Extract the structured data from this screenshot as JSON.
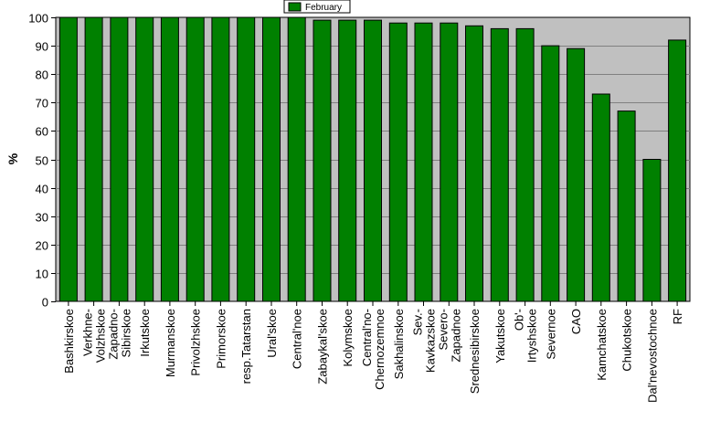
{
  "chart_data": {
    "type": "bar",
    "xlabel": "",
    "ylabel": "%",
    "ylim": [
      0,
      100
    ],
    "yticks": [
      0,
      10,
      20,
      30,
      40,
      50,
      60,
      70,
      80,
      90,
      100
    ],
    "grid": true,
    "legend_position": "top-center",
    "categories": [
      [
        "Bashkirskoe"
      ],
      [
        "Verkhne-",
        "Volzhskoe"
      ],
      [
        "Zapadno-",
        "Sibirskoe"
      ],
      [
        "Irkutskoe"
      ],
      [
        "Murmanskoe"
      ],
      [
        "Privolzhskoe"
      ],
      [
        "Primorskoe"
      ],
      [
        "resp.Tatarstan"
      ],
      [
        "Ural'skoe"
      ],
      [
        "Central'noe"
      ],
      [
        "Zabaykal'skoe"
      ],
      [
        "Kolymskoe"
      ],
      [
        "Central'no-",
        "Chernozemnoe"
      ],
      [
        "Sakhalinskoe"
      ],
      [
        "Sev.-",
        "Kavkazskoe"
      ],
      [
        "Severo-",
        "Zapadnoe"
      ],
      [
        "Srednesibirskoe"
      ],
      [
        "Yakutskoe"
      ],
      [
        "Ob'-",
        "Irtyshskoe"
      ],
      [
        "Severnoe"
      ],
      [
        "CAO"
      ],
      [
        "Kamchatskoe"
      ],
      [
        "Chukotskoe"
      ],
      [
        "Dal'nevostochnoe"
      ],
      [
        "RF"
      ]
    ],
    "series": [
      {
        "name": "February",
        "values": [
          100,
          100,
          100,
          100,
          100,
          100,
          100,
          100,
          100,
          100,
          99,
          99,
          99,
          98,
          98,
          98,
          97,
          96,
          96,
          90,
          89,
          73,
          67,
          50,
          92
        ]
      }
    ],
    "colors": {
      "bar": "#008000",
      "plot_background": "#c0c0c0",
      "grid": "#808080",
      "axis": "#000000"
    }
  }
}
